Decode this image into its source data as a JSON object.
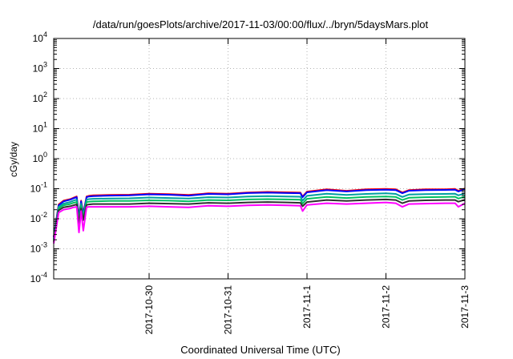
{
  "chart_data": {
    "type": "line",
    "title": "/data/run/goesPlots/archive/2017-11-03/00:00/flux/../bryn/5daysMars.plot",
    "xlabel": "Coordinated Universal Time (UTC)",
    "ylabel": "cGy/day",
    "yscale": "log",
    "ylim": [
      0.0001,
      10000
    ],
    "xlim": [
      "2017-10-28T19:00",
      "2017-11-03T00:00"
    ],
    "grid": true,
    "x_ticks": [
      {
        "value": "2017-10-30T00:00",
        "label": "2017-10-30"
      },
      {
        "value": "2017-10-31T00:00",
        "label": "2017-10-31"
      },
      {
        "value": "2017-11-01T00:00",
        "label": "2017-11-1"
      },
      {
        "value": "2017-11-02T00:00",
        "label": "2017-11-2"
      },
      {
        "value": "2017-11-03T00:00",
        "label": "2017-11-3"
      }
    ],
    "y_ticks": [
      {
        "value": 0.0001,
        "base": "10",
        "exp": "-4"
      },
      {
        "value": 0.001,
        "base": "10",
        "exp": "-3"
      },
      {
        "value": 0.01,
        "base": "10",
        "exp": "-2"
      },
      {
        "value": 0.1,
        "base": "10",
        "exp": "-1"
      },
      {
        "value": 1,
        "base": "10",
        "exp": "0"
      },
      {
        "value": 10,
        "base": "10",
        "exp": "1"
      },
      {
        "value": 100,
        "base": "10",
        "exp": "2"
      },
      {
        "value": 1000,
        "base": "10",
        "exp": "3"
      },
      {
        "value": 10000,
        "base": "10",
        "exp": "4"
      }
    ],
    "x": [
      "2017-10-28T19:00",
      "2017-10-28T20:30",
      "2017-10-28T22:00",
      "2017-10-29T00:00",
      "2017-10-29T01:00",
      "2017-10-29T02:00",
      "2017-10-29T02:40",
      "2017-10-29T03:20",
      "2017-10-29T04:00",
      "2017-10-29T05:00",
      "2017-10-29T05:40",
      "2017-10-29T07:00",
      "2017-10-29T12:00",
      "2017-10-29T18:00",
      "2017-10-30T00:00",
      "2017-10-30T06:00",
      "2017-10-30T12:00",
      "2017-10-30T18:00",
      "2017-10-31T00:00",
      "2017-10-31T06:00",
      "2017-10-31T12:00",
      "2017-10-31T18:00",
      "2017-10-31T22:00",
      "2017-10-31T22:40",
      "2017-11-01T00:00",
      "2017-11-01T06:00",
      "2017-11-01T12:00",
      "2017-11-01T18:00",
      "2017-11-02T00:00",
      "2017-11-02T03:00",
      "2017-11-02T05:00",
      "2017-11-02T07:00",
      "2017-11-02T12:00",
      "2017-11-02T18:00",
      "2017-11-02T21:00",
      "2017-11-02T22:00",
      "2017-11-03T00:00"
    ],
    "series": [
      {
        "color": "#ff0000",
        "values": [
          0.0025,
          0.03,
          0.04,
          0.045,
          0.05,
          0.055,
          0.012,
          0.04,
          0.015,
          0.055,
          0.058,
          0.06,
          0.062,
          0.063,
          0.068,
          0.066,
          0.062,
          0.07,
          0.068,
          0.075,
          0.078,
          0.076,
          0.074,
          0.055,
          0.08,
          0.095,
          0.085,
          0.095,
          0.098,
          0.095,
          0.075,
          0.09,
          0.095,
          0.096,
          0.098,
          0.085,
          0.102
        ]
      },
      {
        "color": "#0000ff",
        "values": [
          0.0024,
          0.028,
          0.038,
          0.043,
          0.048,
          0.052,
          0.011,
          0.038,
          0.014,
          0.052,
          0.055,
          0.057,
          0.059,
          0.06,
          0.065,
          0.063,
          0.059,
          0.067,
          0.065,
          0.072,
          0.074,
          0.072,
          0.071,
          0.052,
          0.076,
          0.09,
          0.081,
          0.09,
          0.093,
          0.09,
          0.071,
          0.086,
          0.09,
          0.091,
          0.093,
          0.081,
          0.097
        ]
      },
      {
        "color": "#00a0a0",
        "values": [
          0.0021,
          0.025,
          0.032,
          0.036,
          0.04,
          0.043,
          0.009,
          0.032,
          0.012,
          0.043,
          0.045,
          0.046,
          0.047,
          0.048,
          0.051,
          0.049,
          0.047,
          0.052,
          0.051,
          0.055,
          0.057,
          0.055,
          0.054,
          0.04,
          0.058,
          0.068,
          0.062,
          0.067,
          0.07,
          0.067,
          0.053,
          0.064,
          0.066,
          0.067,
          0.068,
          0.06,
          0.07
        ]
      },
      {
        "color": "#00c060",
        "values": [
          0.0019,
          0.022,
          0.028,
          0.031,
          0.034,
          0.036,
          0.008,
          0.027,
          0.01,
          0.036,
          0.037,
          0.038,
          0.039,
          0.039,
          0.041,
          0.04,
          0.038,
          0.042,
          0.041,
          0.044,
          0.045,
          0.044,
          0.043,
          0.032,
          0.046,
          0.053,
          0.049,
          0.053,
          0.055,
          0.053,
          0.042,
          0.05,
          0.052,
          0.053,
          0.054,
          0.047,
          0.055
        ]
      },
      {
        "color": "#303030",
        "values": [
          0.0017,
          0.019,
          0.024,
          0.026,
          0.028,
          0.03,
          0.007,
          0.022,
          0.009,
          0.029,
          0.03,
          0.031,
          0.031,
          0.031,
          0.033,
          0.032,
          0.031,
          0.034,
          0.033,
          0.035,
          0.036,
          0.035,
          0.034,
          0.026,
          0.036,
          0.042,
          0.039,
          0.042,
          0.044,
          0.042,
          0.033,
          0.039,
          0.041,
          0.042,
          0.042,
          0.037,
          0.043
        ]
      },
      {
        "color": "#ff00ff",
        "values": [
          0.0015,
          0.016,
          0.02,
          0.022,
          0.024,
          0.025,
          0.0035,
          0.018,
          0.004,
          0.024,
          0.025,
          0.025,
          0.025,
          0.025,
          0.026,
          0.025,
          0.024,
          0.027,
          0.026,
          0.028,
          0.029,
          0.028,
          0.027,
          0.018,
          0.029,
          0.033,
          0.031,
          0.033,
          0.035,
          0.033,
          0.025,
          0.031,
          0.032,
          0.033,
          0.033,
          0.025,
          0.033
        ]
      }
    ]
  }
}
